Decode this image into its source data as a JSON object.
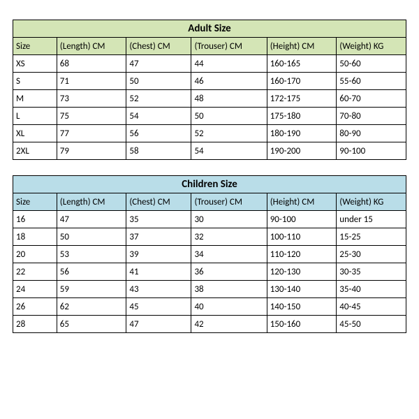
{
  "tables": [
    {
      "title": "Adult Size",
      "title_bg": "#d4e5b6",
      "header_bg": "#d4e5b6",
      "columns": [
        "Size",
        "(Length) CM",
        "(Chest) CM",
        "(Trouser) CM",
        "(Height) CM",
        "(Weight) KG"
      ],
      "rows": [
        [
          "XS",
          "68",
          "47",
          "44",
          "160-165",
          "50-60"
        ],
        [
          "S",
          "71",
          "50",
          "46",
          "160-170",
          "55-60"
        ],
        [
          "M",
          "73",
          "52",
          "48",
          "172-175",
          "60-70"
        ],
        [
          "L",
          "75",
          "54",
          "50",
          "175-180",
          "70-80"
        ],
        [
          "XL",
          "77",
          "56",
          "52",
          "180-190",
          "80-90"
        ],
        [
          "2XL",
          "79",
          "58",
          "54",
          "190-200",
          "90-100"
        ]
      ]
    },
    {
      "title": "Children Size",
      "title_bg": "#b9dde8",
      "header_bg": "#b9dde8",
      "columns": [
        "Size",
        "(Length) CM",
        "(Chest) CM",
        "(Trouser) CM",
        "(Height) CM",
        "(Weight) KG"
      ],
      "rows": [
        [
          "16",
          "47",
          "35",
          "30",
          "90-100",
          "under 15"
        ],
        [
          "18",
          "50",
          "37",
          "32",
          "100-110",
          "15-25"
        ],
        [
          "20",
          "53",
          "39",
          "34",
          "110-120",
          "25-30"
        ],
        [
          "22",
          "56",
          "41",
          "36",
          "120-130",
          "30-35"
        ],
        [
          "24",
          "59",
          "43",
          "38",
          "130-140",
          "35-40"
        ],
        [
          "26",
          "62",
          "45",
          "40",
          "140-150",
          "40-45"
        ],
        [
          "28",
          "65",
          "47",
          "42",
          "150-160",
          "45-50"
        ]
      ]
    }
  ],
  "layout": {
    "col_classes": [
      "c0",
      "c1",
      "c2",
      "c3",
      "c4",
      "c5"
    ],
    "border_color": "#000000",
    "cell_font_size": 13,
    "title_font_size": 15,
    "background": "#ffffff"
  }
}
